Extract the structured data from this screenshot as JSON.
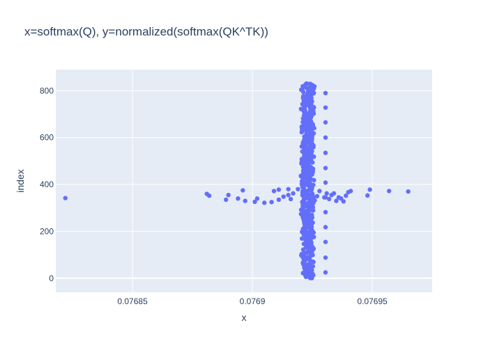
{
  "chart_data": {
    "type": "scatter",
    "title": "x=softmax(Q), y=normalized(softmax(QK^TK))",
    "xlabel": "x",
    "ylabel": "index",
    "xlim": [
      0.076818,
      0.076975
    ],
    "ylim": [
      -60,
      890
    ],
    "x_ticks": [
      0.07685,
      0.0769,
      0.07695
    ],
    "x_tick_labels": [
      "0.07685",
      "0.0769",
      "0.07695"
    ],
    "y_ticks": [
      0,
      200,
      400,
      600,
      800
    ],
    "y_tick_labels": [
      "0",
      "200",
      "400",
      "600",
      "800"
    ],
    "grid": true,
    "legend": "none",
    "colors": {
      "marker": "#636efa",
      "plot_bg": "#e5ecf6",
      "grid": "#ffffff",
      "text": "#2a3f5f"
    },
    "series": [
      {
        "points": [
          [
            0.076822,
            342
          ],
          [
            0.076881,
            360
          ],
          [
            0.076882,
            352
          ],
          [
            0.076889,
            335
          ],
          [
            0.07689,
            355
          ],
          [
            0.076894,
            340
          ],
          [
            0.076896,
            375
          ],
          [
            0.076897,
            330
          ],
          [
            0.076901,
            326
          ],
          [
            0.076902,
            340
          ],
          [
            0.076905,
            322
          ],
          [
            0.076908,
            325
          ],
          [
            0.076909,
            372
          ],
          [
            0.076911,
            378
          ],
          [
            0.076911,
            335
          ],
          [
            0.076913,
            348
          ],
          [
            0.076915,
            380
          ],
          [
            0.076915,
            355
          ],
          [
            0.076916,
            338
          ],
          [
            0.076917,
            362
          ],
          [
            0.076919,
            380
          ],
          [
            0.076921,
            372
          ],
          [
            0.076922,
            345
          ],
          [
            0.076921,
            325
          ],
          [
            0.076925,
            360
          ],
          [
            0.076926,
            332
          ],
          [
            0.076927,
            350
          ],
          [
            0.076928,
            372
          ],
          [
            0.07693,
            345
          ],
          [
            0.076931,
            362
          ],
          [
            0.076932,
            338
          ],
          [
            0.076933,
            355
          ],
          [
            0.076934,
            362
          ],
          [
            0.076935,
            330
          ],
          [
            0.076936,
            345
          ],
          [
            0.076937,
            340
          ],
          [
            0.076938,
            328
          ],
          [
            0.076939,
            352
          ],
          [
            0.07694,
            367
          ],
          [
            0.076941,
            372
          ],
          [
            0.076948,
            353
          ],
          [
            0.076949,
            378
          ],
          [
            0.076957,
            372
          ],
          [
            0.076965,
            370
          ],
          [
            0.0769305,
            790
          ],
          [
            0.0769305,
            728
          ],
          [
            0.0769305,
            665
          ],
          [
            0.0769305,
            600
          ],
          [
            0.0769305,
            535
          ],
          [
            0.0769305,
            470
          ],
          [
            0.0769305,
            408
          ],
          [
            0.0769305,
            345
          ],
          [
            0.0769305,
            282
          ],
          [
            0.0769305,
            218
          ],
          [
            0.0769305,
            155
          ],
          [
            0.0769305,
            88
          ],
          [
            0.0769305,
            25
          ]
        ]
      }
    ],
    "dense_band": {
      "x_min": 0.07692,
      "x_max": 0.076926,
      "y_min": 0,
      "y_max": 830
    }
  }
}
